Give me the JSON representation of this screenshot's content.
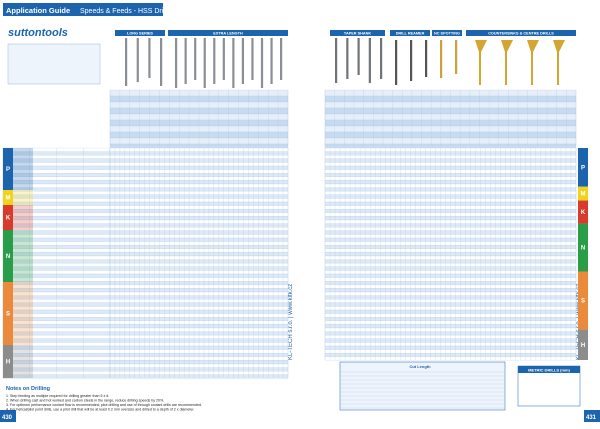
{
  "header": {
    "title": "Application Guide",
    "subtitle": "Speeds & Feeds - HSS Drills",
    "logo": "suttontools"
  },
  "left_columns": [
    "LONG SERIES",
    "EXTRA LENGTH"
  ],
  "right_columns": [
    "TAPER SHANK",
    "DRILL REAMER",
    "NC SPOTTING",
    "COUNTERSINKS & CENTRE DRILLS"
  ],
  "iso_groups": [
    "P",
    "M",
    "K",
    "N",
    "S",
    "H"
  ],
  "side_text": "KL-TECH s.r.o. | www.kltk.cz",
  "notes": {
    "title": "Notes on Drilling",
    "items": [
      "1. Step feeding as multiple required for drilling greater than 5 x d.",
      "2. When drilling cast and hot worked and carbon steels in the range, reduce drilling speeds by 20%.",
      "3. For optimum performance coolant flow is recommended; pilot drilling and use of through coolant drills are recommended.",
      "4. For helical/pilot point drills, use a pilot drill that will be at least 0.2 mm oversize and drilled to a depth of 2 x diameter."
    ]
  },
  "right_tables": {
    "cut_length": "Cut Length",
    "metric": "METRIC DRILLS (mm)"
  },
  "pages": {
    "left": "430",
    "right": "431"
  }
}
